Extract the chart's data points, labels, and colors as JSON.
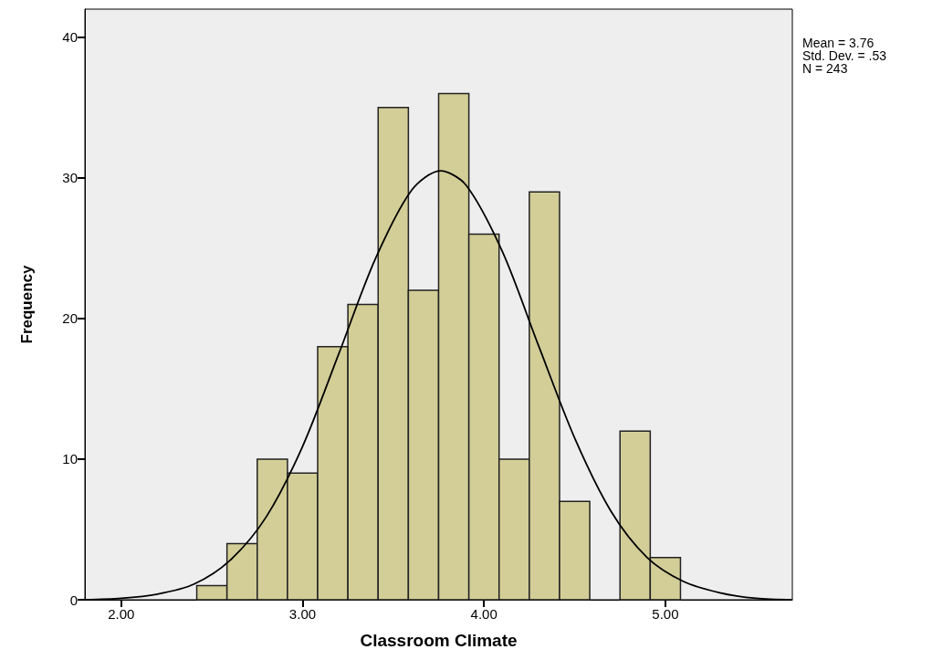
{
  "chart_data": {
    "type": "histogram",
    "xlabel": "Classroom Climate",
    "ylabel": "Frequency",
    "bins": [
      2.4167,
      2.5833,
      2.75,
      2.9167,
      3.0833,
      3.25,
      3.4167,
      3.5833,
      3.75,
      3.9167,
      4.0833,
      4.25,
      4.4167,
      4.5833,
      4.75,
      4.9167,
      5.0833
    ],
    "values": [
      1,
      4,
      10,
      9,
      18,
      21,
      35,
      22,
      36,
      26,
      10,
      29,
      7,
      0,
      12,
      3
    ],
    "color": "#d3ce97",
    "series": [
      {
        "type": "line",
        "color": "#000000",
        "x": [
          1.8,
          2.0,
          2.2,
          2.4,
          2.6,
          2.8,
          3.0,
          3.2,
          3.4,
          3.6,
          3.76,
          3.9,
          4.1,
          4.3,
          4.5,
          4.7,
          4.9,
          5.1,
          5.3,
          5.5,
          5.7
        ],
        "values": [
          0.0,
          0.1,
          0.4,
          1.1,
          2.8,
          5.9,
          10.9,
          17.5,
          24.2,
          29.1,
          30.5,
          29.5,
          24.8,
          18.1,
          11.5,
          6.3,
          3.0,
          1.3,
          0.5,
          0.1,
          0.0
        ]
      }
    ],
    "xlim": [
      1.8,
      5.7
    ],
    "ylim": [
      0,
      42
    ],
    "xticks": [
      {
        "value": 2,
        "label": "2.00"
      },
      {
        "value": 3,
        "label": "3.00"
      },
      {
        "value": 4,
        "label": "4.00"
      },
      {
        "value": 5,
        "label": "5.00"
      }
    ],
    "yticks": [
      0,
      10,
      20,
      30,
      40
    ],
    "annotations": [
      "Mean = 3.76",
      "Std. Dev. = .53",
      "N = 243"
    ],
    "grid": false,
    "marker": "none",
    "line_style": "solid"
  }
}
